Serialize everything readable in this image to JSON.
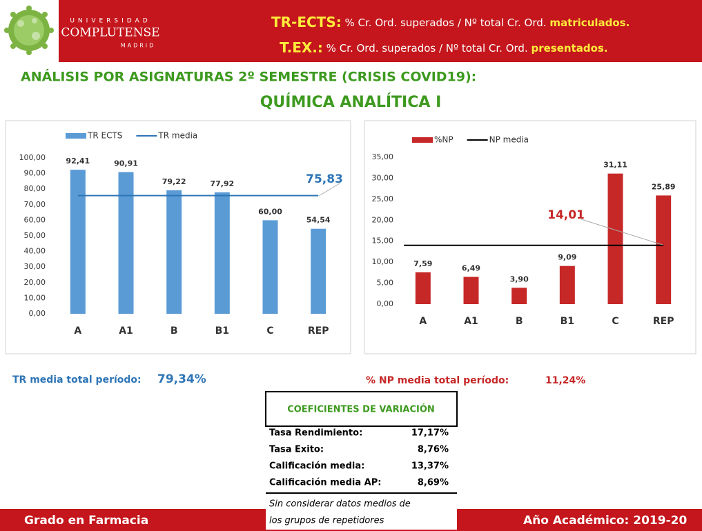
{
  "logo": {
    "top": "UNIVERSIDAD",
    "name": "COMPLUTENSE",
    "city": "MADRID"
  },
  "header": {
    "line1": {
      "label": "TR-ECTS:",
      "text": "% Cr. Ord. superados / Nº total Cr. Ord.",
      "highlight": "matriculados."
    },
    "line2": {
      "label": "T.EX.:",
      "text": "% Cr. Ord. superados / Nº total Cr. Ord.",
      "highlight": "presentados."
    }
  },
  "title": "ANÁLISIS POR ASIGNATURAS 2º SEMESTRE (CRISIS COVID19):",
  "subtitle": "QUÍMICA ANALÍTICA I",
  "chart_data": [
    {
      "type": "bar",
      "categories": [
        "A",
        "A1",
        "B",
        "B1",
        "C",
        "REP"
      ],
      "series": [
        {
          "name": "TR ECTS",
          "color": "#5b9bd5",
          "values": [
            92.41,
            90.91,
            79.22,
            77.92,
            60,
            54.54
          ],
          "value_labels": [
            "92,41",
            "90,91",
            "79,22",
            "77,92",
            "60,00",
            "54,54"
          ]
        }
      ],
      "mean_line": {
        "name": "TR media",
        "value": 75.83,
        "label": "75,83",
        "color": "#2e75b6"
      },
      "ylim": [
        0,
        100
      ],
      "yticks": [
        {
          "value": 0,
          "label": "0,00"
        },
        {
          "value": 10,
          "label": "10,00"
        },
        {
          "value": 20,
          "label": "20,00"
        },
        {
          "value": 30,
          "label": "30,00"
        },
        {
          "value": 40,
          "label": "40,00"
        },
        {
          "value": 50,
          "label": "50,00"
        },
        {
          "value": 60,
          "label": "60,00"
        },
        {
          "value": 70,
          "label": "70,00"
        },
        {
          "value": 80,
          "label": "80,00"
        },
        {
          "value": 90,
          "label": "90,00"
        },
        {
          "value": 100,
          "label": "100,00"
        }
      ],
      "grid": false
    },
    {
      "type": "bar",
      "categories": [
        "A",
        "A1",
        "B",
        "B1",
        "C",
        "REP"
      ],
      "series": [
        {
          "name": "%NP",
          "color": "#c62828",
          "values": [
            7.59,
            6.49,
            3.9,
            9.09,
            31.11,
            25.89
          ],
          "value_labels": [
            "7,59",
            "6,49",
            "3,90",
            "9,09",
            "31,11",
            "25,89"
          ]
        }
      ],
      "mean_line": {
        "name": "NP media",
        "value": 14.01,
        "label": "14,01",
        "color": "#000000"
      },
      "ylim": [
        0,
        35
      ],
      "yticks": [
        {
          "value": 0,
          "label": "0,00"
        },
        {
          "value": 5,
          "label": "5,00"
        },
        {
          "value": 10,
          "label": "10,00"
        },
        {
          "value": 15,
          "label": "15,00"
        },
        {
          "value": 20,
          "label": "20,00"
        },
        {
          "value": 25,
          "label": "25,00"
        },
        {
          "value": 30,
          "label": "30,00"
        },
        {
          "value": 35,
          "label": "35,00"
        }
      ],
      "grid": false
    }
  ],
  "summary": {
    "tr": {
      "label": "TR media total período:",
      "value": "79,34%"
    },
    "np": {
      "label": "% NP media total período:",
      "value": "11,24%"
    }
  },
  "table": {
    "title": "COEFICIENTES DE VARIACIÓN",
    "rows": [
      [
        "Tasa Rendimiento:",
        "17,17%"
      ],
      [
        "Tasa Exito:",
        "8,76%"
      ],
      [
        "Calificación media:",
        "13,37%"
      ],
      [
        "Calificación media AP:",
        "8,69%"
      ]
    ],
    "note": [
      "Sin considerar datos medios de",
      "los grupos de repetidores"
    ]
  },
  "footer": {
    "left": "Grado en Farmacia",
    "right": "Año Académico: 2019-20"
  }
}
